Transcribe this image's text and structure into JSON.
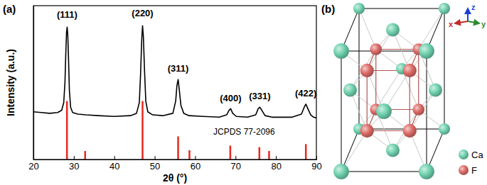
{
  "chart_data": {
    "type": "line",
    "panel_label": "(a)",
    "x_label": "2θ (°)",
    "y_label": "Intensity (a.u.)",
    "xlim": [
      20,
      90
    ],
    "xticks": [
      20,
      30,
      40,
      50,
      60,
      70,
      80,
      90
    ],
    "ylim": [
      0,
      100
    ],
    "tick_labels": "x",
    "series": [
      {
        "type": "line",
        "color": "#000000",
        "x": [
          20,
          22,
          24,
          26,
          27,
          27.5,
          27.8,
          28.0,
          28.2,
          28.35,
          28.5,
          28.7,
          28.9,
          29.2,
          29.7,
          31,
          33,
          36,
          40,
          44,
          45.5,
          46.2,
          46.5,
          46.8,
          47.0,
          47.2,
          47.5,
          47.8,
          48.3,
          49.5,
          52,
          54.5,
          55.2,
          55.5,
          55.8,
          56.1,
          56.5,
          57.2,
          58.5,
          62,
          66,
          67.8,
          68.4,
          68.8,
          69.3,
          70.2,
          73,
          75,
          75.6,
          76,
          76.5,
          77.3,
          79,
          84,
          86.3,
          87,
          87.4,
          87.9,
          88.6,
          89.3,
          90
        ],
        "values": [
          31,
          30.5,
          30,
          30.5,
          32,
          37,
          50,
          68,
          83,
          86,
          81,
          64,
          45,
          34,
          30.5,
          29.5,
          29,
          28.5,
          28,
          28.5,
          30,
          37,
          55,
          78,
          87,
          80,
          57,
          38,
          31,
          29,
          28.5,
          30,
          38,
          48,
          52,
          45,
          35,
          30,
          28.5,
          28,
          27.5,
          29,
          32,
          33,
          30,
          28,
          27.5,
          29,
          33,
          34,
          32,
          28.5,
          27.5,
          27.5,
          29.5,
          34,
          36,
          33,
          29,
          27.5,
          27
        ]
      },
      {
        "name": "JCPDS 77-2096",
        "type": "bar",
        "color": "#e8281e",
        "x": [
          28.3,
          32.8,
          47.0,
          55.8,
          58.6,
          68.7,
          75.9,
          78.3,
          87.4
        ],
        "values": [
          38,
          5.5,
          38,
          15,
          6,
          9,
          8,
          5.5,
          10
        ]
      }
    ],
    "annotations": [
      {
        "text": "(111)",
        "x": 28.35,
        "y": 92
      },
      {
        "text": "(220)",
        "x": 47.0,
        "y": 93
      },
      {
        "text": "(311)",
        "x": 55.8,
        "y": 57
      },
      {
        "text": "(400)",
        "x": 68.8,
        "y": 38
      },
      {
        "text": "(331)",
        "x": 76.0,
        "y": 39
      },
      {
        "text": "(422)",
        "x": 87.4,
        "y": 41
      }
    ]
  },
  "diagram": {
    "label": "(b)",
    "axes": [
      {
        "label": "z",
        "color": "#1a3fd6"
      },
      {
        "label": "x",
        "color": "#c62828"
      },
      {
        "label": "y",
        "color": "#2e8b2e"
      }
    ],
    "legend": [
      {
        "label": "Ca",
        "color": "#6fd1ae"
      },
      {
        "label": "F",
        "color": "#dc6a66"
      }
    ]
  }
}
